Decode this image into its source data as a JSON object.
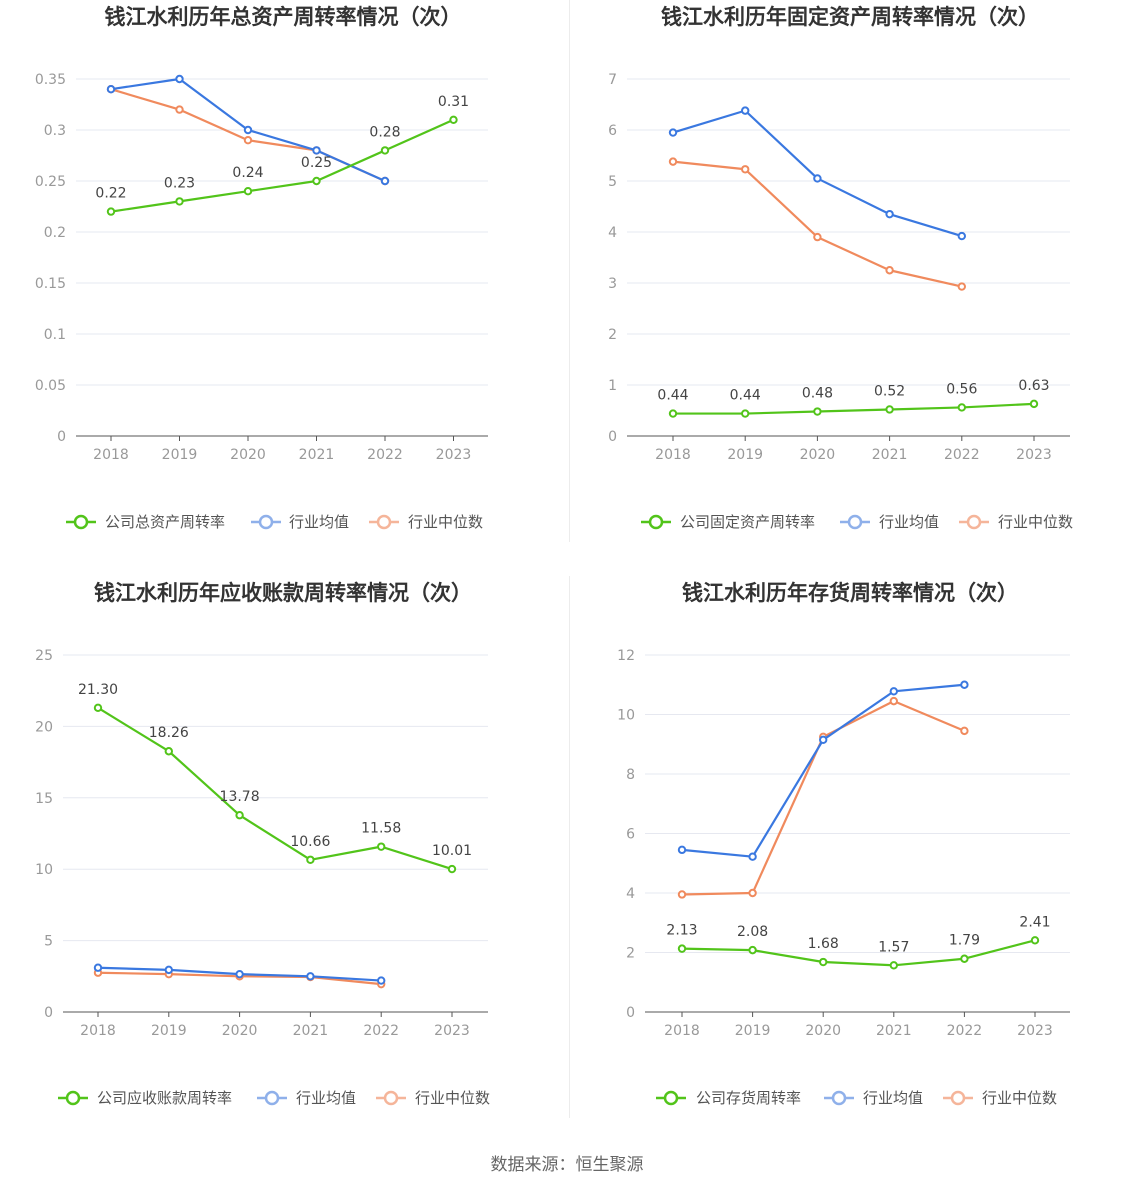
{
  "footer": "数据来源：恒生聚源",
  "chart_data": [
    {
      "type": "line",
      "title": "钱江水利历年总资产周转率情况（次）",
      "categories": [
        "2018",
        "2019",
        "2020",
        "2021",
        "2022",
        "2023"
      ],
      "ylim": [
        0,
        0.35
      ],
      "yticks": [
        0,
        0.05,
        0.1,
        0.15,
        0.2,
        0.25,
        0.3,
        0.35
      ],
      "ytick_labels": [
        "0",
        "0.05",
        "0.1",
        "0.15",
        "0.2",
        "0.25",
        "0.3",
        "0.35"
      ],
      "grid": true,
      "legend_position": "bottom",
      "series": [
        {
          "name": "公司总资产周转率",
          "color": "#52c41a",
          "values": [
            0.22,
            0.23,
            0.24,
            0.25,
            0.28,
            0.31
          ],
          "labels": [
            "0.22",
            "0.23",
            "0.24",
            "0.25",
            "0.28",
            "0.31"
          ]
        },
        {
          "name": "行业均值",
          "color": "#3a78e0",
          "values": [
            0.34,
            0.35,
            0.3,
            0.28,
            0.25,
            null
          ]
        },
        {
          "name": "行业中位数",
          "color": "#f08a5d",
          "values": [
            0.34,
            0.32,
            0.29,
            0.28,
            0.25,
            null
          ]
        }
      ]
    },
    {
      "type": "line",
      "title": "钱江水利历年固定资产周转率情况（次）",
      "categories": [
        "2018",
        "2019",
        "2020",
        "2021",
        "2022",
        "2023"
      ],
      "ylim": [
        0,
        7
      ],
      "yticks": [
        0,
        1,
        2,
        3,
        4,
        5,
        6,
        7
      ],
      "ytick_labels": [
        "0",
        "1",
        "2",
        "3",
        "4",
        "5",
        "6",
        "7"
      ],
      "grid": true,
      "legend_position": "bottom",
      "series": [
        {
          "name": "公司固定资产周转率",
          "color": "#52c41a",
          "values": [
            0.44,
            0.44,
            0.48,
            0.52,
            0.56,
            0.63
          ],
          "labels": [
            "0.44",
            "0.44",
            "0.48",
            "0.52",
            "0.56",
            "0.63"
          ]
        },
        {
          "name": "行业均值",
          "color": "#3a78e0",
          "values": [
            5.95,
            6.38,
            5.05,
            4.35,
            3.92,
            null
          ]
        },
        {
          "name": "行业中位数",
          "color": "#f08a5d",
          "values": [
            5.38,
            5.23,
            3.9,
            3.25,
            2.93,
            null
          ]
        }
      ]
    },
    {
      "type": "line",
      "title": "钱江水利历年应收账款周转率情况（次）",
      "categories": [
        "2018",
        "2019",
        "2020",
        "2021",
        "2022",
        "2023"
      ],
      "ylim": [
        0,
        25
      ],
      "yticks": [
        0,
        5,
        10,
        15,
        20,
        25
      ],
      "ytick_labels": [
        "0",
        "5",
        "10",
        "15",
        "20",
        "25"
      ],
      "grid": true,
      "legend_position": "bottom",
      "series": [
        {
          "name": "公司应收账款周转率",
          "color": "#52c41a",
          "values": [
            21.3,
            18.26,
            13.78,
            10.66,
            11.58,
            10.01
          ],
          "labels": [
            "21.30",
            "18.26",
            "13.78",
            "10.66",
            "11.58",
            "10.01"
          ]
        },
        {
          "name": "行业均值",
          "color": "#3a78e0",
          "values": [
            3.1,
            2.95,
            2.65,
            2.5,
            2.2,
            null
          ]
        },
        {
          "name": "行业中位数",
          "color": "#f08a5d",
          "values": [
            2.75,
            2.65,
            2.5,
            2.45,
            1.95,
            null
          ]
        }
      ]
    },
    {
      "type": "line",
      "title": "钱江水利历年存货周转率情况（次）",
      "categories": [
        "2018",
        "2019",
        "2020",
        "2021",
        "2022",
        "2023"
      ],
      "ylim": [
        0,
        12
      ],
      "yticks": [
        0,
        2,
        4,
        6,
        8,
        10,
        12
      ],
      "ytick_labels": [
        "0",
        "2",
        "4",
        "6",
        "8",
        "10",
        "12"
      ],
      "grid": true,
      "legend_position": "bottom",
      "series": [
        {
          "name": "公司存货周转率",
          "color": "#52c41a",
          "values": [
            2.13,
            2.08,
            1.68,
            1.57,
            1.79,
            2.41
          ],
          "labels": [
            "2.13",
            "2.08",
            "1.68",
            "1.57",
            "1.79",
            "2.41"
          ]
        },
        {
          "name": "行业均值",
          "color": "#3a78e0",
          "values": [
            5.45,
            5.22,
            9.15,
            10.78,
            11.0,
            null
          ]
        },
        {
          "name": "行业中位数",
          "color": "#f08a5d",
          "values": [
            3.95,
            4.0,
            9.25,
            10.45,
            9.45,
            null
          ]
        }
      ]
    }
  ]
}
